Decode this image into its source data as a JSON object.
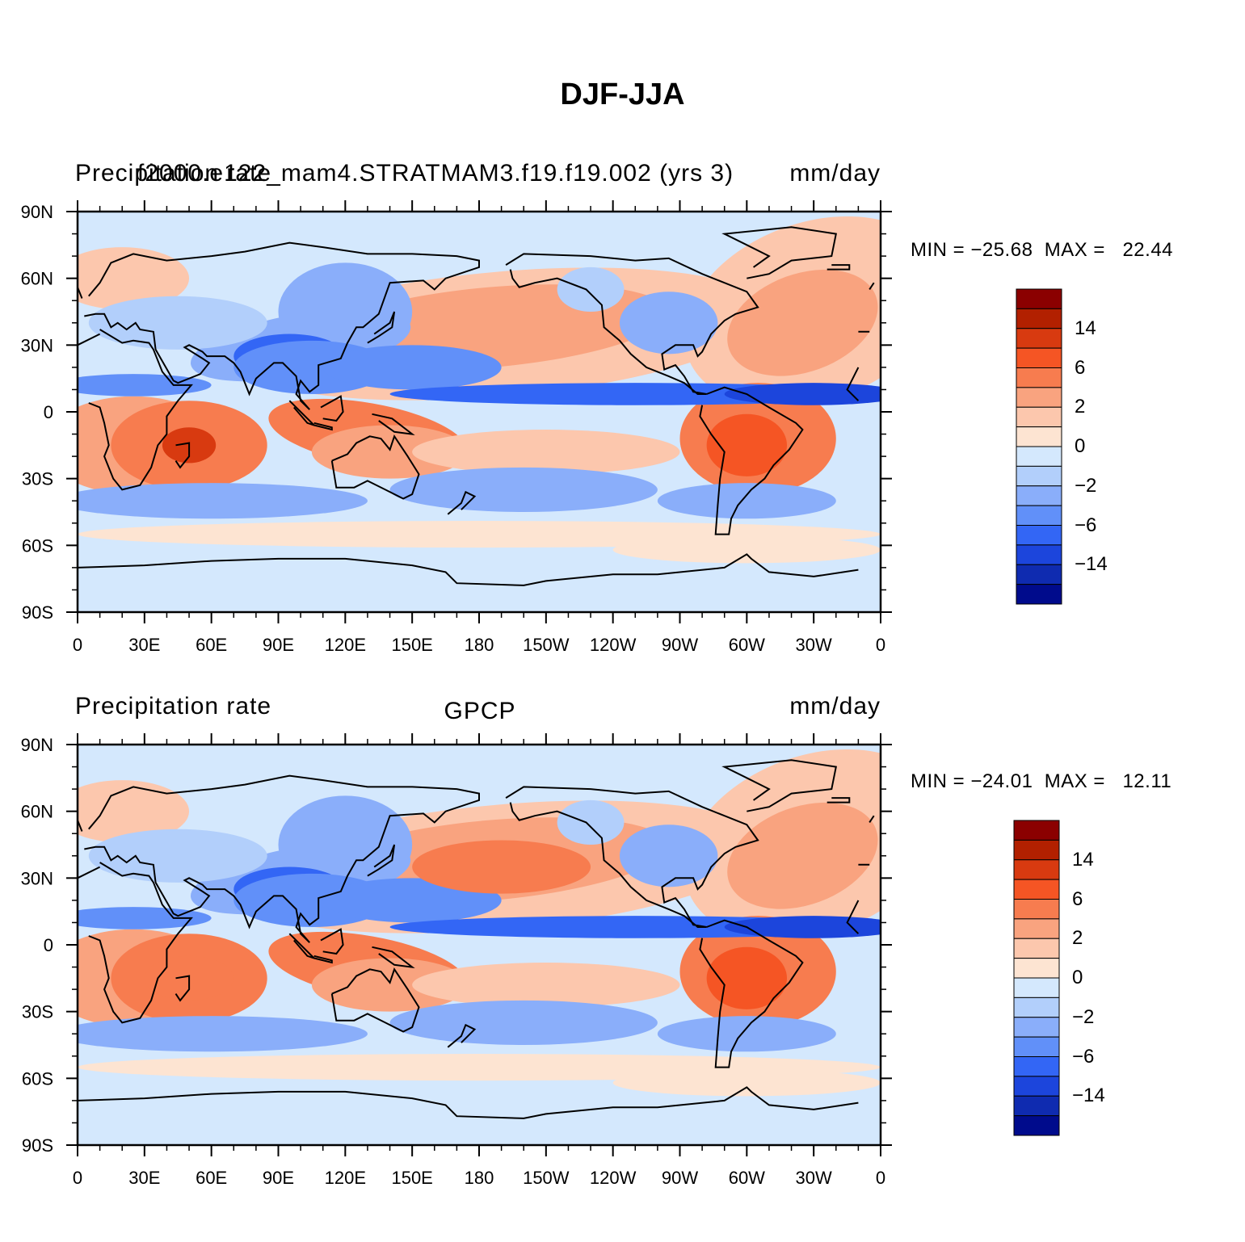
{
  "title": "DJF-JJA",
  "panels": [
    {
      "left_label": "Precipitation rate",
      "center_label": "f2000.e122_mam4.STRATMAM3.f19.f19.002 (yrs 3)",
      "right_label": "mm/day",
      "min_max": "MIN = −25.68  MAX =   22.44"
    },
    {
      "left_label": "Precipitation rate",
      "center_label": "GPCP",
      "right_label": "mm/day",
      "min_max": "MIN = −24.01  MAX =   12.11"
    }
  ],
  "lon_ticks": [
    "0",
    "30E",
    "60E",
    "90E",
    "120E",
    "150E",
    "180",
    "150W",
    "120W",
    "90W",
    "60W",
    "30W",
    "0"
  ],
  "lat_ticks": [
    "90N",
    "60N",
    "30N",
    "0",
    "30S",
    "60S",
    "90S"
  ],
  "colorbar": {
    "labels": [
      "14",
      "6",
      "2",
      "0",
      "−2",
      "−6",
      "−14"
    ],
    "colors": [
      "#8b0000",
      "#b22000",
      "#d83a10",
      "#f55524",
      "#f77c4f",
      "#f9a37f",
      "#fcc7ad",
      "#fde4d2",
      "#d4e8fd",
      "#b2cffb",
      "#8aaefa",
      "#6190f9",
      "#3366f5",
      "#1c45dc",
      "#0f2bb0",
      "#000b8c"
    ]
  }
}
